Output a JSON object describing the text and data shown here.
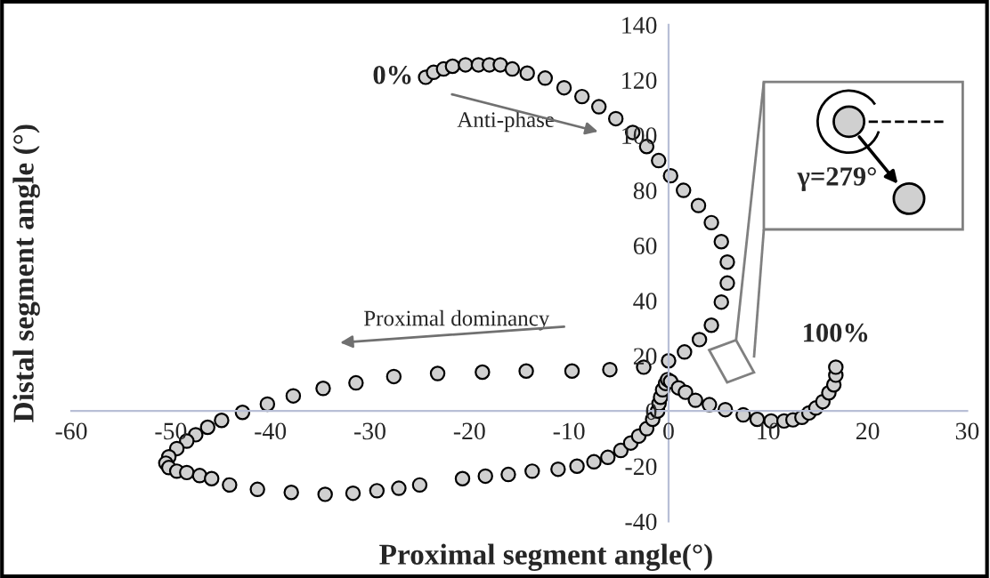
{
  "chart_data": {
    "type": "scatter",
    "xlabel": "Proximal segment angle(°)",
    "ylabel": "Distal segment angle (°)",
    "xlim": [
      -60,
      30
    ],
    "xticks": [
      -60,
      -50,
      -40,
      -30,
      -20,
      -10,
      0,
      10,
      20,
      30
    ],
    "ylim": [
      -40,
      140
    ],
    "yticks": [
      -40,
      -20,
      0,
      20,
      40,
      60,
      80,
      100,
      120,
      140
    ],
    "grid": false,
    "legend": false,
    "marker": "circle",
    "series": [
      {
        "color": "#d0d0d0",
        "x": [
          -24.4,
          -23.6,
          -22.6,
          -21.7,
          -20.4,
          -19.1,
          -18.0,
          -16.9,
          -15.7,
          -14.2,
          -12.4,
          -10.5,
          -8.7,
          -7.0,
          -5.3,
          -3.6,
          -2.2,
          -1.0,
          0.2,
          1.5,
          3.0,
          4.3,
          5.3,
          5.9,
          5.9,
          5.3,
          4.3,
          3.1,
          1.6,
          0.0,
          -2.5,
          -5.9,
          -9.7,
          -14.3,
          -18.7,
          -23.2,
          -27.6,
          -31.4,
          -34.7,
          -37.7,
          -40.3,
          -42.8,
          -44.9,
          -46.3,
          -47.5,
          -48.4,
          -49.4,
          -50.2,
          -50.5,
          -50.2,
          -49.4,
          -48.4,
          -47.1,
          -45.9,
          -44.1,
          -41.3,
          -37.9,
          -34.5,
          -31.7,
          -29.3,
          -27.1,
          -25.0,
          -20.7,
          -18.4,
          -16.1,
          -13.7,
          -11.1,
          -9.2,
          -7.5,
          -6.1,
          -4.8,
          -3.8,
          -3.0,
          -2.2,
          -1.6,
          -1.1,
          -0.96,
          -0.8,
          -0.6,
          -0.3,
          -0.1,
          0.2,
          1.0,
          1.7,
          2.7,
          4.1,
          5.7,
          7.5,
          8.9,
          10.3,
          11.6,
          12.5,
          13.4,
          14.1,
          14.8,
          15.5,
          16.1,
          16.6,
          16.8,
          16.8
        ],
        "values": [
          121,
          122.8,
          124,
          125,
          125.5,
          125.5,
          125.5,
          125.5,
          124,
          122.5,
          120.7,
          117.2,
          114,
          110.3,
          106,
          101,
          95.9,
          90.8,
          85.3,
          80,
          74.5,
          68.3,
          61.4,
          54,
          46.4,
          39.5,
          31.1,
          25.9,
          21.4,
          18.2,
          15.9,
          15,
          14.5,
          14.5,
          14.1,
          13.6,
          12.5,
          10.2,
          8.2,
          5.5,
          2.5,
          -0.5,
          -3.4,
          -5.9,
          -8.6,
          -10.9,
          -13.6,
          -16.6,
          -18.9,
          -20.5,
          -21.8,
          -22.3,
          -23.4,
          -24.5,
          -26.8,
          -28.4,
          -29.5,
          -30.2,
          -29.8,
          -28.9,
          -28,
          -26.8,
          -24.5,
          -23.6,
          -23,
          -21.8,
          -21.1,
          -20,
          -18.4,
          -16.8,
          -14.3,
          -11.6,
          -9.1,
          -6.4,
          -3,
          0,
          2.7,
          5,
          7.7,
          10,
          11.4,
          10.7,
          8.4,
          6.8,
          3.9,
          2.3,
          0.5,
          -1.4,
          -3,
          -3.6,
          -3.6,
          -3.2,
          -2.3,
          -0.7,
          1.1,
          3.4,
          6.6,
          9.5,
          13,
          15.9
        ]
      }
    ],
    "annotations": [
      {
        "text": "0%",
        "x": -24.4,
        "y": 121
      },
      {
        "text": "100%",
        "x": 16.8,
        "y": 15.9
      },
      "Anti-phase",
      "Proximal dominancy",
      "γ=279°"
    ]
  }
}
